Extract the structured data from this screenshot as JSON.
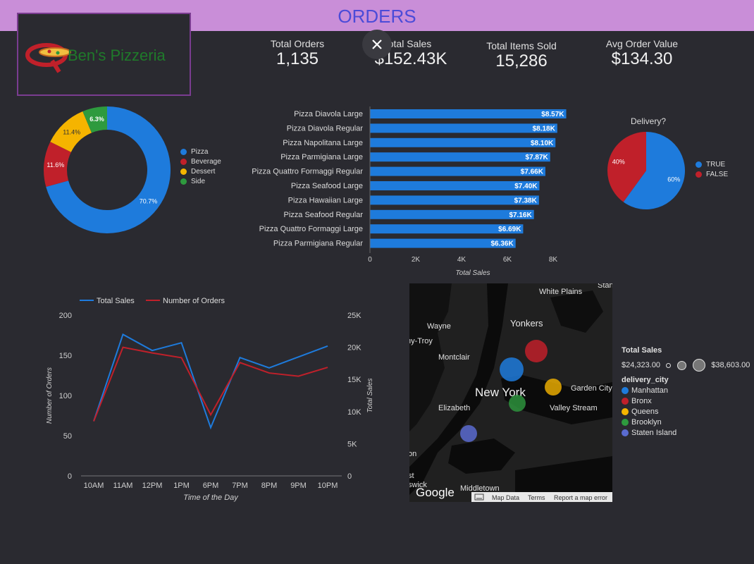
{
  "header": {
    "title": "ORDERS"
  },
  "logo": {
    "text": "Ben's Pizzeria"
  },
  "kpis": [
    {
      "label": "Total Orders",
      "value": "1,135"
    },
    {
      "label": "Total Sales",
      "value": "$152.43K"
    },
    {
      "label": "Total Items Sold",
      "value": "15,286"
    },
    {
      "label": "Avg Order Value",
      "value": "$134.30"
    }
  ],
  "close_icon": "close-icon",
  "colors": {
    "blue": "#1e7bdc",
    "red": "#c0202a",
    "yellow": "#f5b400",
    "green": "#2e9a3e",
    "slate": "#5a6bd0"
  },
  "chart_data": [
    {
      "type": "pie",
      "subtype": "donut",
      "categories": [
        "Pizza",
        "Beverage",
        "Dessert",
        "Side"
      ],
      "values": [
        70.7,
        11.6,
        11.4,
        6.3
      ],
      "labels": [
        "70.7%",
        "11.6%",
        "11.4%",
        "6.3%"
      ],
      "colors": [
        "#1e7bdc",
        "#c0202a",
        "#f5b400",
        "#2e9a3e"
      ],
      "legend": "right"
    },
    {
      "type": "bar",
      "orientation": "horizontal",
      "categories": [
        "Pizza Diavola Large",
        "Pizza Diavola Regular",
        "Pizza Napolitana Large",
        "Pizza Parmigiana Large",
        "Pizza Quattro Formaggi Regular",
        "Pizza Seafood Large",
        "Pizza Hawaiian Large",
        "Pizza Seafood Regular",
        "Pizza Quattro Formaggi Large",
        "Pizza Parmigiana Regular"
      ],
      "values": [
        8570,
        8180,
        8100,
        7870,
        7660,
        7400,
        7380,
        7160,
        6690,
        6360
      ],
      "value_labels": [
        "$8.57K",
        "$8.18K",
        "$8.10K",
        "$7.87K",
        "$7.66K",
        "$7.40K",
        "$7.38K",
        "$7.16K",
        "$6.69K",
        "$6.36K"
      ],
      "xlim": [
        0,
        8000
      ],
      "x_ticks": [
        "0",
        "2K",
        "4K",
        "6K",
        "8K"
      ],
      "xlabel": "Total Sales"
    },
    {
      "type": "pie",
      "title": "Delivery?",
      "categories": [
        "TRUE",
        "FALSE"
      ],
      "values": [
        60,
        40
      ],
      "labels": [
        "60%",
        "40%"
      ],
      "colors": [
        "#1e7bdc",
        "#c0202a"
      ],
      "legend": "right"
    },
    {
      "type": "line",
      "x": [
        "10AM",
        "11AM",
        "12PM",
        "1PM",
        "6PM",
        "7PM",
        "8PM",
        "9PM",
        "10PM"
      ],
      "series": [
        {
          "name": "Total Sales",
          "axis": "right",
          "values": [
            8500,
            22000,
            19500,
            20700,
            7500,
            18400,
            16800,
            18500,
            20200
          ]
        },
        {
          "name": "Number of Orders",
          "axis": "left",
          "values": [
            68,
            160,
            153,
            147,
            76,
            141,
            128,
            124,
            135
          ]
        }
      ],
      "xlabel": "Time of the Day",
      "ylabel": "Number of Orders",
      "y2label": "Total Sales",
      "ylim": [
        0,
        200
      ],
      "y2lim": [
        0,
        25000
      ],
      "y_ticks": [
        "0",
        "50",
        "100",
        "150",
        "200"
      ],
      "y2_ticks": [
        "0",
        "5K",
        "10K",
        "15K",
        "20K",
        "25K"
      ],
      "legend": "top"
    }
  ],
  "map": {
    "places": [
      "White Plains",
      "Stan",
      "Yonkers",
      "Wayne",
      "ny-Troy",
      "Montclair",
      "New York",
      "Garden City",
      "Elizabeth",
      "Valley Stream",
      "on",
      "st",
      "swick",
      "Middletown"
    ],
    "footer": {
      "google": "Google",
      "map_data": "Map Data",
      "terms": "Terms",
      "report": "Report a map error"
    },
    "legend": {
      "size_title": "Total Sales",
      "size_min": "$24,323.00",
      "size_max": "$38,603.00",
      "color_title": "delivery_city",
      "cities": [
        {
          "name": "Manhattan",
          "color": "#1e7bdc"
        },
        {
          "name": "Bronx",
          "color": "#c0202a"
        },
        {
          "name": "Queens",
          "color": "#f5b400"
        },
        {
          "name": "Brooklyn",
          "color": "#2e9a3e"
        },
        {
          "name": "Staten Island",
          "color": "#5a6bd0"
        }
      ]
    }
  }
}
